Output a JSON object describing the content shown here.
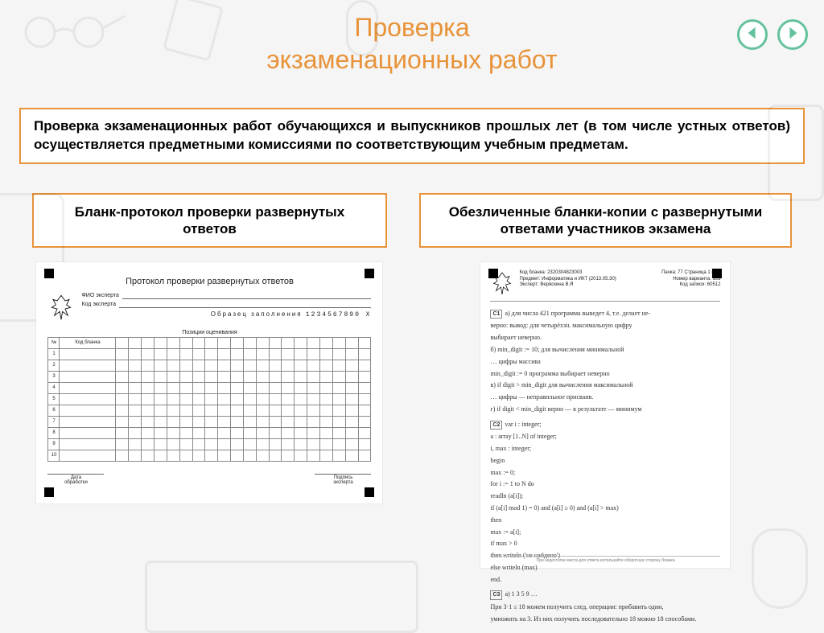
{
  "title_line1": "Проверка",
  "title_line2": "экзаменационных работ",
  "nav": {
    "prev": "prev",
    "next": "next"
  },
  "intro": "Проверка экзаменационных работ обучающихся и выпускников прошлых лет (в том числе устных ответов) осуществляется предметными комиссиями  по соответствующим учебным предметам.",
  "left": {
    "heading": "Бланк-протокол проверки развернутых ответов",
    "form": {
      "title": "Протокол проверки развернутых ответов",
      "meta_labels": {
        "fio": "ФИО эксперта",
        "code": "Код эксперта"
      },
      "sample_label": "Образец заполнения",
      "sample_digits": "1234567890 X",
      "grid_caption": "Позиции оценивания",
      "col_nn": "№",
      "col_code": "Код бланка",
      "rows": [
        "1",
        "2",
        "3",
        "4",
        "5",
        "6",
        "7",
        "8",
        "9",
        "10"
      ],
      "scoring_cols": 20,
      "footer": {
        "date_label1": "Дата",
        "date_label2": "обработки",
        "sign_label1": "Подпись",
        "sign_label2": "эксперта"
      }
    }
  },
  "right": {
    "heading": "Обезличенные бланки-копии с развернутыми ответами участников экзамена",
    "form": {
      "barcode": "Код бланка: 2320304823003",
      "subject": "Предмет: Информатика и ИКТ (2013.05.30)",
      "expert": "Эксперт: Веряскина В.Я",
      "page": "Пачка: 77   Страница 1  из  4",
      "variant": "Номер варианта: 103",
      "work": "Код записи: 60512",
      "answers": [
        {
          "q": "C1",
          "lines": [
            "а) для числа 421 программа выведет 4, т.е. делает не-",
            "верно: вывод: для четырёхзн. максимальную цифру",
            "выбирает неверно.",
            "б) min_digit := 10;    для вычисления минимальной",
            "…                             цифры массива",
            "min_digit := 0           программа выбирает неверно",
            "в) if digit > min_digit  для вычисления максимальной",
            "…                               цифры — неправильное присваив.",
            "г) if digit < min_digit  верно — в результате — минимум"
          ]
        },
        {
          "q": "C2",
          "lines": [
            "var   i : integer;",
            "     a : array [1..N] of integer;",
            "     i, max : integer;",
            "begin",
            "   max := 0;",
            "   for i := 1 to N do",
            "      readln (a[i]);",
            "   if (a[i] mod 1) = 0) and (a[i] ≥ 0) and (a[i] > max)",
            "   then",
            "      max := a[i];",
            "   if max > 0",
            "   then writeln ('не найдено')",
            "   else writeln (max)",
            "end."
          ]
        },
        {
          "q": "C3",
          "lines": [
            "а)  1 3 5 9 …",
            "При 3·1 ≤ 18  можем получить след. операции: прибавить один,",
            "умножить на 3. Из них получить последовательно 18 можно 18 способами."
          ]
        }
      ],
      "footer_note": "При недостатке места для ответа используйте оборотную сторону бланка"
    }
  },
  "colors": {
    "accent_orange": "#e8933a",
    "accent_green": "#63c29b",
    "page_bg": "#f5f5f5"
  }
}
